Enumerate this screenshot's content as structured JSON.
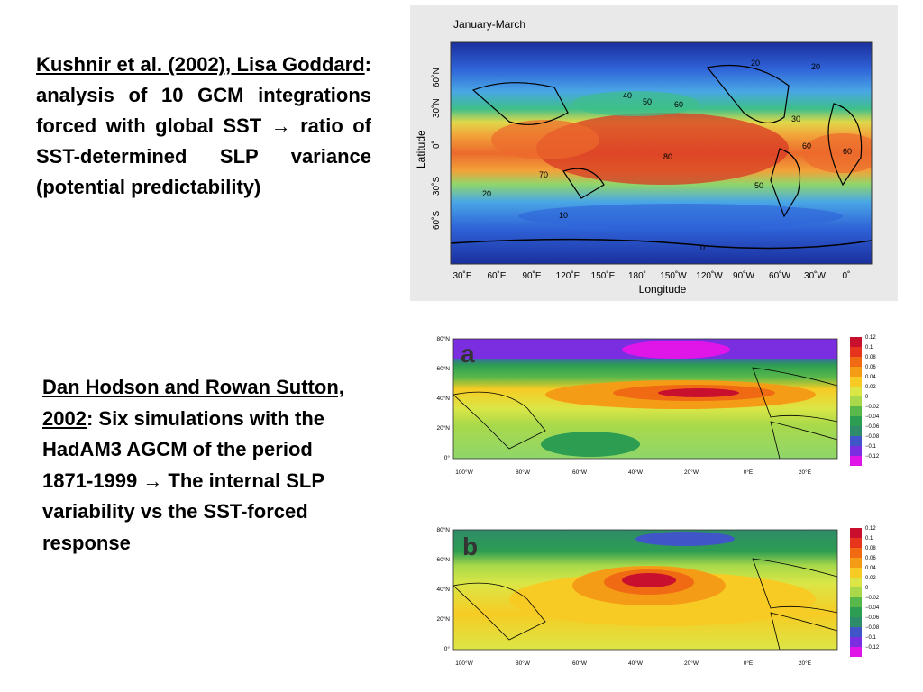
{
  "text1": {
    "citation": "Kushnir et al. (2002), Lisa Goddard",
    "colon": ":",
    "body": " analysis of 10 GCM integrations forced with global SST → ratio of SST-determined SLP variance (potential predictability)"
  },
  "text2": {
    "citation": "Dan Hodson and Rowan Sutton, 2002",
    "colon": ":",
    "body": " Six simulations with the HadAM3 AGCM of the period 1871-1999 → The internal SLP variability vs the SST-forced response"
  },
  "map1": {
    "title": "January-March",
    "xlabel": "Longitude",
    "ylabel": "Latitude",
    "lon_ticks": [
      "30˚E",
      "60˚E",
      "90˚E",
      "120˚E",
      "150˚E",
      "180˚",
      "150˚W",
      "120˚W",
      "90˚W",
      "60˚W",
      "30˚W",
      "0˚"
    ],
    "lat_ticks": [
      "60˚N",
      "30˚N",
      "0˚",
      "30˚S",
      "60˚S"
    ],
    "contour_labels": [
      "20",
      "20",
      "40",
      "50",
      "60",
      "30",
      "60",
      "60",
      "80",
      "70",
      "50",
      "20",
      "10",
      "0"
    ]
  },
  "map2": {
    "panel_label": "a",
    "lat_ticks": [
      "80°N",
      "60°N",
      "40°N",
      "20°N",
      "0°"
    ],
    "lon_ticks": [
      "100°W",
      "80°W",
      "60°W",
      "40°W",
      "20°W",
      "0°E",
      "20°E"
    ],
    "colorbar_labels": [
      "0.12",
      "0.1",
      "0.08",
      "0.06",
      "0.04",
      "0.02",
      "0",
      "−0.02",
      "−0.04",
      "−0.06",
      "−0.08",
      "−0.1",
      "−0.12"
    ]
  },
  "map3": {
    "panel_label": "b",
    "lat_ticks": [
      "80°N",
      "60°N",
      "40°N",
      "20°N",
      "0°"
    ],
    "lon_ticks": [
      "100°W",
      "80°W",
      "60°W",
      "40°W",
      "20°W",
      "0°E",
      "20°E"
    ],
    "colorbar_labels": [
      "0.12",
      "0.1",
      "0.08",
      "0.06",
      "0.04",
      "0.02",
      "0",
      "−0.02",
      "−0.04",
      "−0.06",
      "−0.08",
      "−0.1",
      "−0.12"
    ]
  },
  "colors": {
    "map1_scale": [
      "#1b2f9e",
      "#2f63d8",
      "#49a6e6",
      "#3fbf8a",
      "#8fd66b",
      "#e0d84a",
      "#f2a33a",
      "#ec6a2c",
      "#d83a24"
    ],
    "map2_scale": [
      "#c8102e",
      "#e7341c",
      "#f06a14",
      "#f59c16",
      "#f7cb24",
      "#dbe646",
      "#a9d94a",
      "#59b84a",
      "#2d9d52",
      "#2e8c6a",
      "#3f55c8",
      "#7b2ee0",
      "#e015e8"
    ]
  }
}
